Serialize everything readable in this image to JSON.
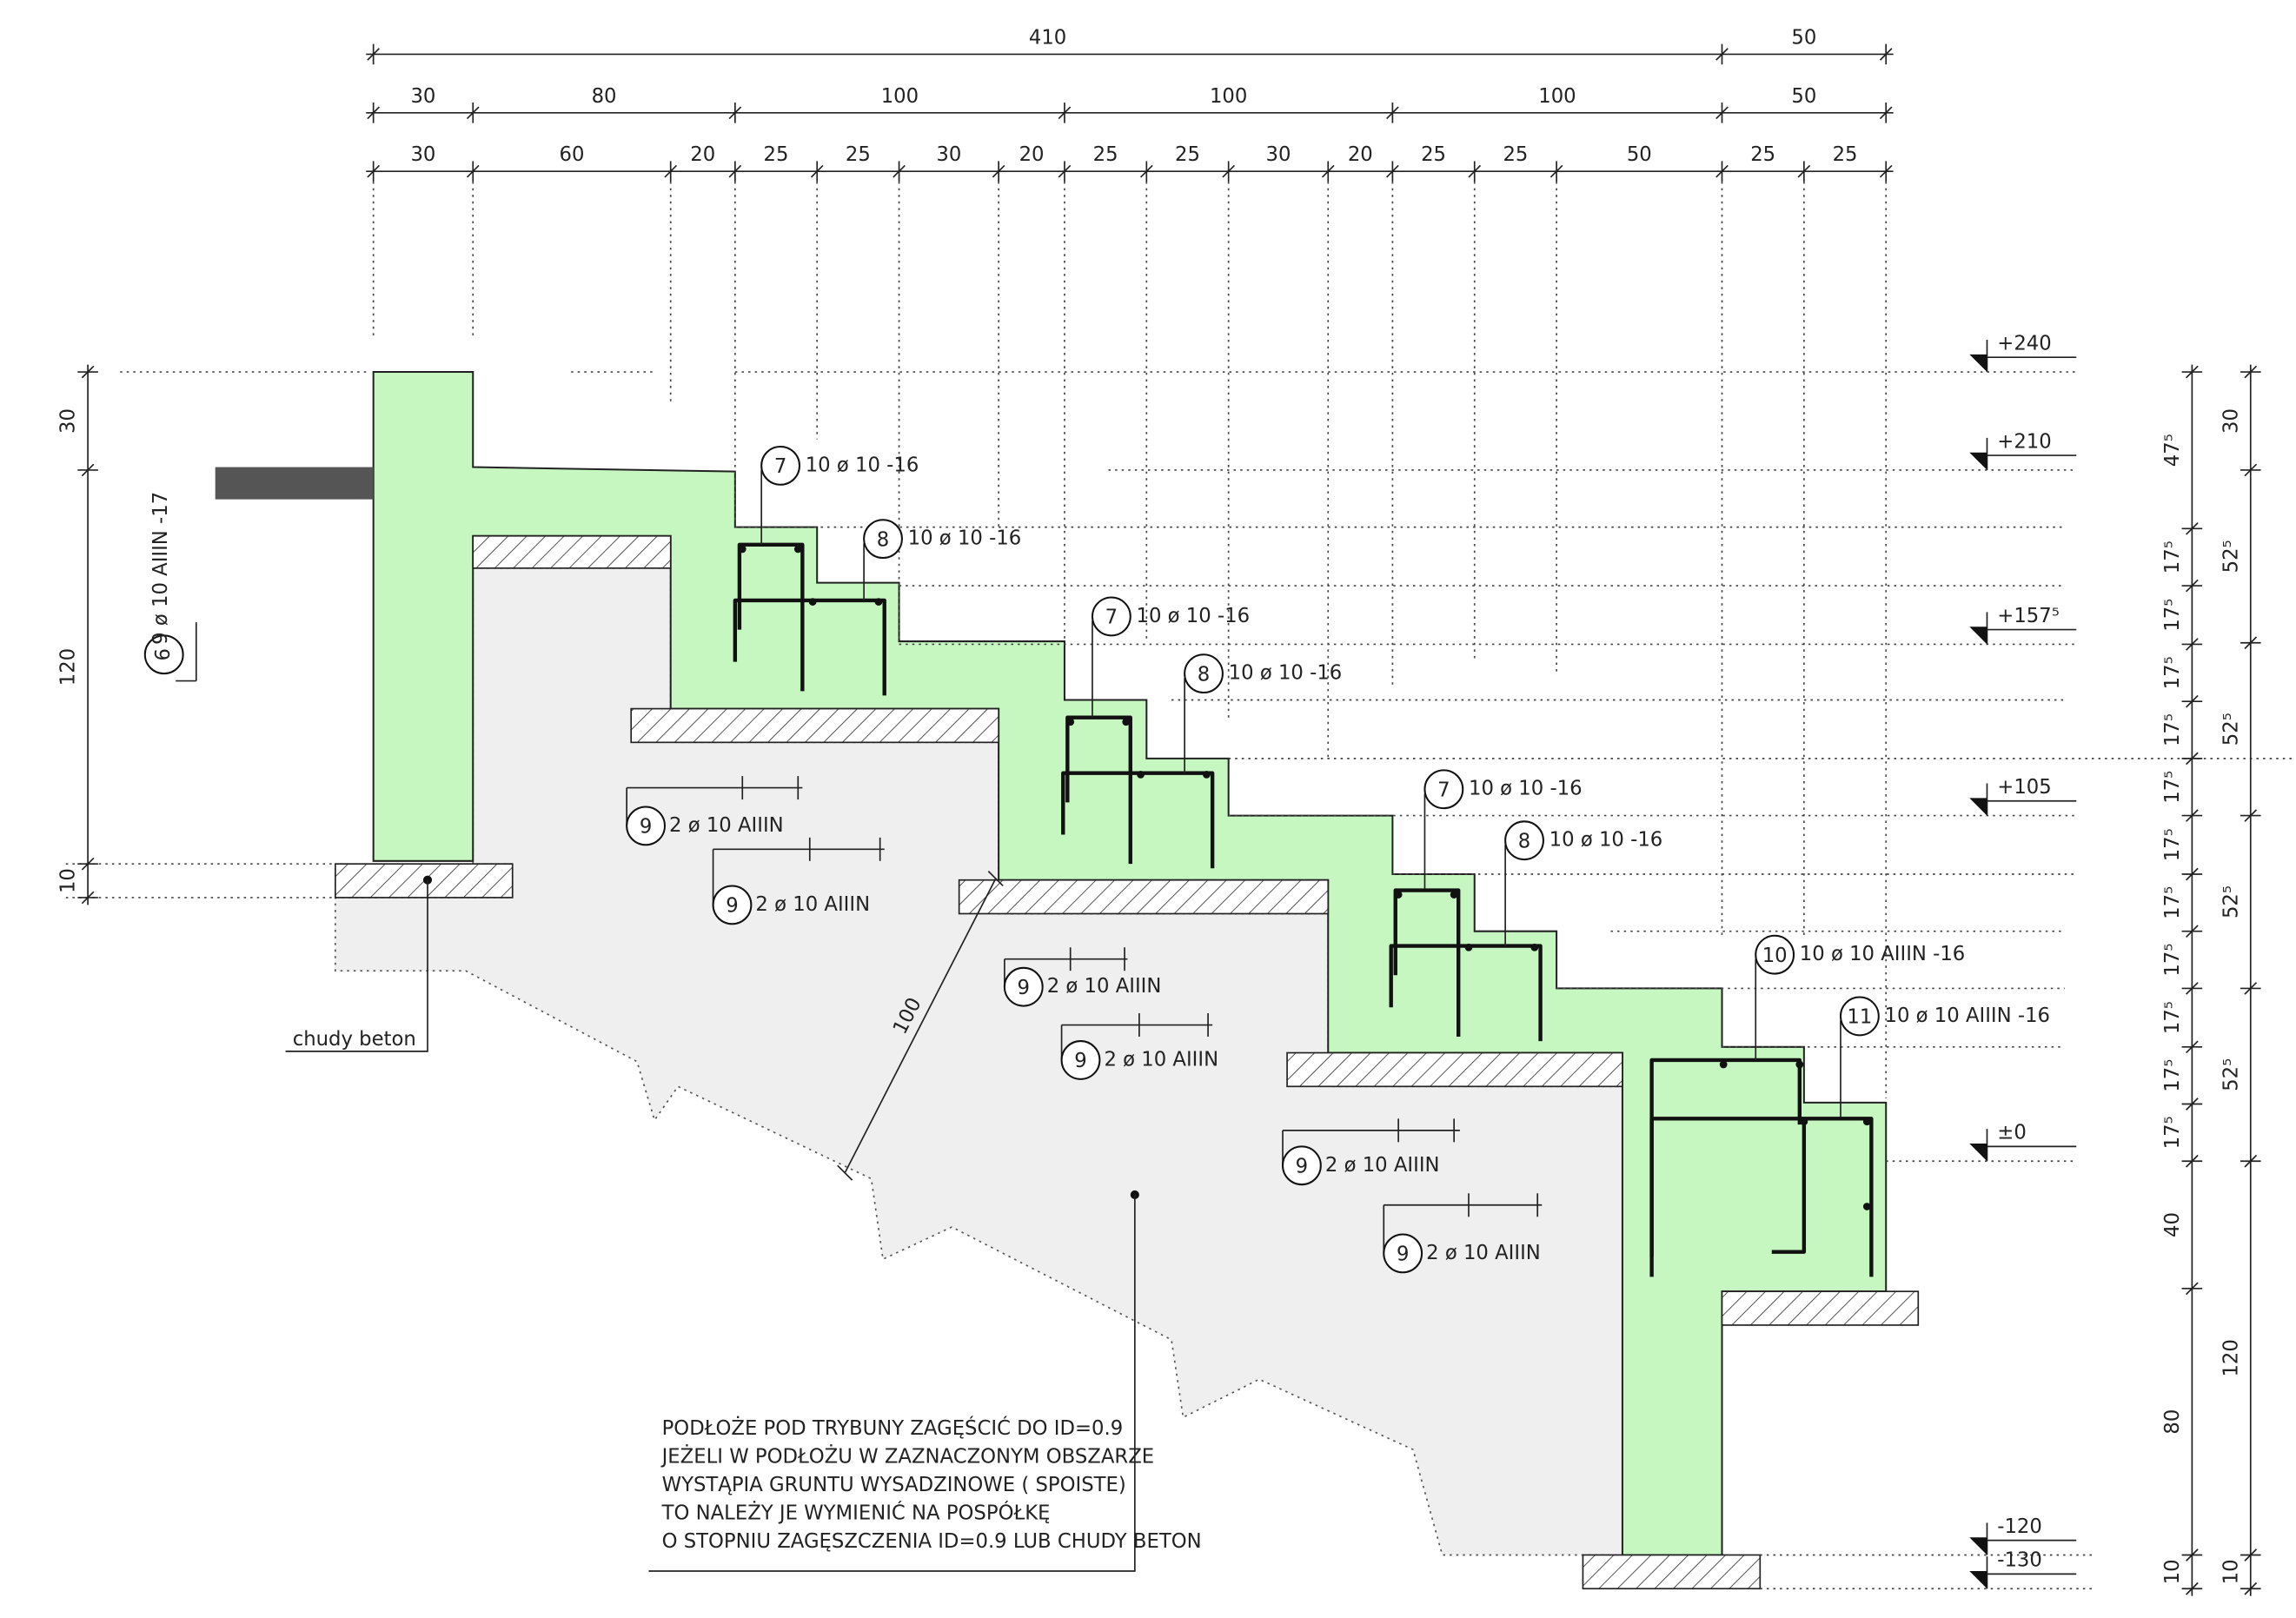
{
  "dimensions_top": {
    "row1": [
      "410",
      "50"
    ],
    "row2": [
      "30",
      "80",
      "100",
      "100",
      "100",
      "50"
    ],
    "row3": [
      "30",
      "60",
      "20",
      "25",
      "25",
      "30",
      "20",
      "25",
      "25",
      "30",
      "20",
      "25",
      "25",
      "50",
      "25",
      "25"
    ]
  },
  "levels": [
    "+240",
    "+210",
    "+157⁵",
    "+105",
    "±0",
    "-120",
    "-130"
  ],
  "dimensions_left": [
    "30",
    "120",
    "10"
  ],
  "dimensions_right_inner": [
    "47⁵",
    "17⁵",
    "17⁵",
    "17⁵",
    "17⁵",
    "17⁵",
    "17⁵",
    "17⁵",
    "17⁵",
    "17⁵",
    "17⁵",
    "17⁵",
    "40",
    "80",
    "10"
  ],
  "dimensions_right_outer": [
    "30",
    "52⁵",
    "52⁵",
    "52⁵",
    "52⁵",
    "120",
    "10"
  ],
  "rebars": [
    {
      "mark": "7",
      "spec": "10 ø 10 -16"
    },
    {
      "mark": "8",
      "spec": "10 ø 10 -16"
    },
    {
      "mark": "7",
      "spec": "10 ø 10 -16"
    },
    {
      "mark": "8",
      "spec": "10 ø 10 -16"
    },
    {
      "mark": "7",
      "spec": "10 ø 10 -16"
    },
    {
      "mark": "8",
      "spec": "10 ø 10 -16"
    },
    {
      "mark": "10",
      "spec": "10 ø 10 AIIIN -16"
    },
    {
      "mark": "11",
      "spec": "10 ø 10 AIIIN -16"
    }
  ],
  "bars_9": [
    {
      "mark": "9",
      "spec": "2 ø 10 AIIIN"
    },
    {
      "mark": "9",
      "spec": "2 ø 10 AIIIN"
    },
    {
      "mark": "9",
      "spec": "2 ø 10 AIIIN"
    },
    {
      "mark": "9",
      "spec": "2 ø 10 AIIIN"
    },
    {
      "mark": "9",
      "spec": "2 ø 10 AIIIN"
    },
    {
      "mark": "9",
      "spec": "2 ø 10 AIIIN"
    }
  ],
  "rebar_6": {
    "mark": "6",
    "spec": "9 ø 10 AIIIN -17"
  },
  "lean_concrete_label": "chudy beton",
  "soil_depth_label": "100",
  "note": [
    "PODŁOŻE POD TRYBUNY ZAGĘŚCIĆ DO ID=0.9",
    "JEŻELI W PODŁOŻU W ZAZNACZONYM OBSZARZE",
    "WYSTĄPIA GRUNTU WYSADZINOWE ( SPOISTE)",
    "TO NALEŻY JE WYMIENIĆ NA POSPÓŁKĘ",
    "O STOPNIU ZAGĘSZCZENIA ID=0.9 LUB CHUDY BETON"
  ]
}
